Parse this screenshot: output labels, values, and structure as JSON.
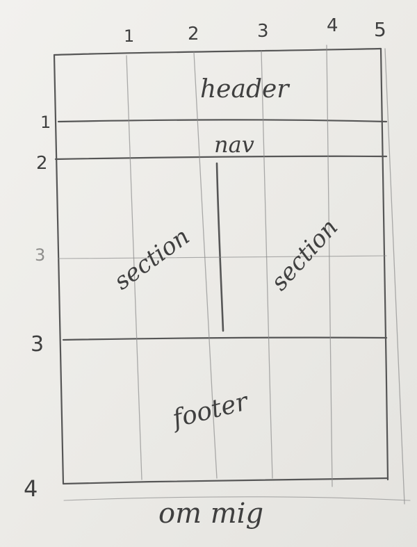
{
  "column_numbers": [
    "1",
    "2",
    "3",
    "4",
    "5"
  ],
  "row_numbers": [
    "1",
    "2",
    "3",
    "4"
  ],
  "faint_row_number": "3",
  "regions": {
    "header": "header",
    "nav": "nav",
    "section_left": "section",
    "section_right": "section",
    "footer": "footer",
    "about": "om mig"
  }
}
